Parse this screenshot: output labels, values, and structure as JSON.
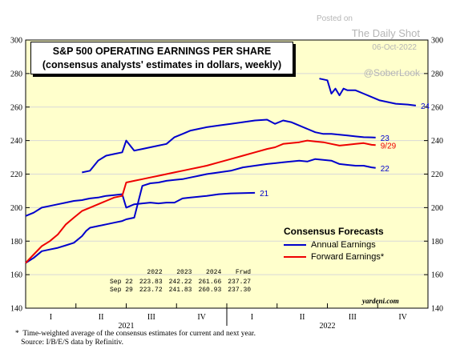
{
  "watermark": {
    "posted_label": "Posted on",
    "source": "The Daily Shot",
    "date": "06-Oct-2022",
    "handle": "@SoberLook"
  },
  "title": {
    "line1": "S&P 500 OPERATING EARNINGS PER SHARE",
    "line2": "(consensus analysts' estimates in dollars, weekly)"
  },
  "legend": {
    "title": "Consensus Forecasts",
    "items": [
      {
        "label": "Annual Earnings",
        "color": "#0000cc"
      },
      {
        "label": "Forward Earnings*",
        "color": "#ee0000"
      }
    ]
  },
  "table": {
    "headers": [
      "",
      "2022",
      "2023",
      "2024",
      "Frwd"
    ],
    "rows": [
      [
        "Sep 22",
        "223.83",
        "242.22",
        "261.66",
        "237.27"
      ],
      [
        "Sep 29",
        "223.72",
        "241.83",
        "260.93",
        "237.30"
      ]
    ]
  },
  "credit": "yardeni.com",
  "footnote": {
    "line1": "*  Time-weighted average of the consensus estimates for current and next year.",
    "line2": "   Source: I/B/E/S data by Refinitiv."
  },
  "chart_data": {
    "type": "line",
    "ylim": [
      140,
      300
    ],
    "yticks": [
      140,
      160,
      180,
      200,
      220,
      240,
      260,
      280,
      300
    ],
    "y_axes": "left and right",
    "grid": true,
    "x_quarters": [
      "I",
      "II",
      "III",
      "IV",
      "I",
      "II",
      "III",
      "IV"
    ],
    "x_years": [
      "2021",
      "2022"
    ],
    "xlim": [
      2021.0,
      2023.0
    ],
    "series": [
      {
        "name": "21",
        "color": "#0000cc",
        "x": [
          2021.0,
          2021.04,
          2021.08,
          2021.12,
          2021.16,
          2021.2,
          2021.24,
          2021.28,
          2021.3,
          2021.32,
          2021.36,
          2021.4,
          2021.44,
          2021.48,
          2021.5,
          2021.54,
          2021.58,
          2021.62,
          2021.66,
          2021.7,
          2021.74,
          2021.78,
          2021.82,
          2021.86,
          2021.9,
          2021.96,
          2022.02,
          2022.08,
          2022.14
        ],
        "y": [
          195,
          197,
          200,
          201,
          202,
          203,
          204,
          204.5,
          205,
          205.5,
          206,
          207,
          207.5,
          208,
          200,
          202,
          202.5,
          203,
          202.5,
          203,
          203,
          205.5,
          206,
          206.5,
          207,
          208,
          208.5,
          208.7,
          208.8
        ]
      },
      {
        "name": "22",
        "color": "#0000cc",
        "x": [
          2021.0,
          2021.04,
          2021.08,
          2021.12,
          2021.16,
          2021.2,
          2021.24,
          2021.28,
          2021.3,
          2021.32,
          2021.36,
          2021.4,
          2021.44,
          2021.48,
          2021.5,
          2021.54,
          2021.58,
          2021.62,
          2021.66,
          2021.7,
          2021.74,
          2021.78,
          2021.82,
          2021.86,
          2021.9,
          2021.96,
          2022.02,
          2022.08,
          2022.14,
          2022.2,
          2022.24,
          2022.28,
          2022.32,
          2022.36,
          2022.4,
          2022.44,
          2022.48,
          2022.52,
          2022.56,
          2022.6,
          2022.64,
          2022.68,
          2022.72,
          2022.74
        ],
        "y": [
          167,
          170,
          174,
          175,
          176,
          177.5,
          179,
          183,
          186,
          188,
          189,
          190,
          191,
          192,
          193,
          194,
          213,
          214.5,
          215,
          216,
          216.5,
          217,
          218,
          219,
          220,
          221,
          222,
          224,
          225,
          226,
          226.5,
          227,
          227.5,
          228,
          227.5,
          229,
          228.5,
          228,
          226,
          225.5,
          225,
          225,
          224,
          223.7
        ]
      },
      {
        "name": "23",
        "color": "#0000cc",
        "x": [
          2021.28,
          2021.32,
          2021.36,
          2021.4,
          2021.44,
          2021.48,
          2021.5,
          2021.54,
          2021.58,
          2021.62,
          2021.66,
          2021.7,
          2021.74,
          2021.78,
          2021.82,
          2021.86,
          2021.9,
          2021.96,
          2022.02,
          2022.08,
          2022.14,
          2022.2,
          2022.24,
          2022.28,
          2022.32,
          2022.36,
          2022.4,
          2022.44,
          2022.48,
          2022.52,
          2022.56,
          2022.6,
          2022.64,
          2022.68,
          2022.72,
          2022.74
        ],
        "y": [
          221,
          222,
          228,
          231,
          232,
          233,
          240,
          234,
          235,
          236,
          237,
          238,
          242,
          244,
          246,
          247,
          248,
          249,
          250,
          251,
          252,
          252.5,
          250,
          252,
          251,
          249,
          247,
          245,
          244,
          244,
          243.5,
          243,
          242.5,
          242,
          241.9,
          241.8
        ]
      },
      {
        "name": "24",
        "color": "#0000cc",
        "x": [
          2022.46,
          2022.5,
          2022.52,
          2022.54,
          2022.56,
          2022.58,
          2022.6,
          2022.64,
          2022.68,
          2022.72,
          2022.76,
          2022.8,
          2022.84,
          2022.9,
          2022.94
        ],
        "y": [
          277,
          276,
          268,
          271,
          267,
          271,
          270,
          270,
          268,
          266,
          264,
          263,
          262,
          261.5,
          260.9
        ]
      },
      {
        "name": "9/29",
        "color": "#ee0000",
        "x": [
          2021.0,
          2021.04,
          2021.08,
          2021.12,
          2021.16,
          2021.2,
          2021.24,
          2021.28,
          2021.32,
          2021.36,
          2021.4,
          2021.44,
          2021.48,
          2021.5,
          2021.54,
          2021.58,
          2021.62,
          2021.66,
          2021.7,
          2021.74,
          2021.78,
          2021.82,
          2021.86,
          2021.9,
          2021.96,
          2022.02,
          2022.08,
          2022.14,
          2022.2,
          2022.24,
          2022.28,
          2022.32,
          2022.36,
          2022.4,
          2022.44,
          2022.48,
          2022.52,
          2022.56,
          2022.6,
          2022.64,
          2022.68,
          2022.72,
          2022.74
        ],
        "y": [
          167,
          172,
          177,
          180,
          184,
          190,
          194,
          198,
          200,
          202,
          204,
          206,
          207,
          215,
          216,
          217,
          218,
          219,
          220,
          221,
          222,
          223,
          224,
          225,
          227,
          229,
          231,
          233,
          235,
          236,
          238,
          238.5,
          239,
          240,
          239.5,
          239,
          238,
          237,
          237.5,
          238,
          238.5,
          237.5,
          237.3
        ]
      }
    ]
  }
}
